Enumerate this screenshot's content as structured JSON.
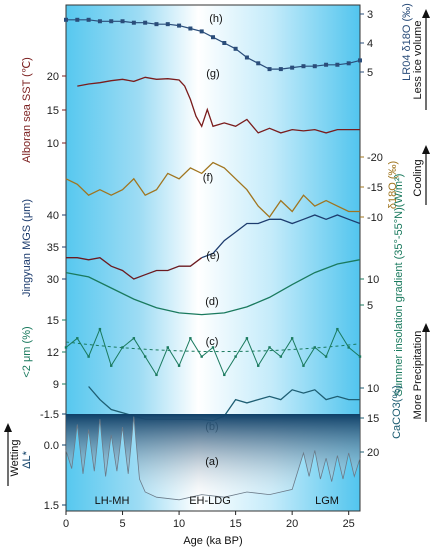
{
  "chart_data": {
    "type": "line",
    "xlabel": "Age (ka BP)",
    "xlim": [
      0,
      26
    ],
    "xticks": [
      "0",
      "5",
      "10",
      "15",
      "20",
      "25"
    ],
    "period_labels": [
      "LH-MH",
      "EH-LDG",
      "LGM"
    ],
    "colors": {
      "h": "#2a4d7a",
      "g": "#7a1c1c",
      "f": "#a0751f",
      "e": "#1d3c6e",
      "e_low": "#6b1a20",
      "d": "#1a7a5e",
      "c": "#1a7a5e",
      "b": "#1e5e73",
      "a": "#0e3f67"
    },
    "series": [
      {
        "id": "h",
        "label": "(h)",
        "ylabel": "LR04 δ18O (‰)",
        "yticks": [
          "3",
          "4",
          "5"
        ],
        "right_axis": true,
        "x": [
          0,
          1,
          2,
          3,
          4,
          5,
          6,
          7,
          8,
          9,
          10,
          11,
          12,
          13,
          14,
          15,
          16,
          17,
          18,
          19,
          20,
          21,
          22,
          23,
          24,
          25,
          26
        ],
        "values": [
          3.2,
          3.2,
          3.2,
          3.25,
          3.25,
          3.25,
          3.3,
          3.3,
          3.35,
          3.35,
          3.4,
          3.5,
          3.6,
          3.8,
          4.0,
          4.2,
          4.5,
          4.7,
          4.9,
          4.9,
          4.85,
          4.8,
          4.8,
          4.75,
          4.75,
          4.7,
          4.6
        ]
      },
      {
        "id": "g",
        "label": "(g)",
        "ylabel": "Alboran sea SST (℃)",
        "yticks": [
          "20",
          "15",
          "10"
        ],
        "x": [
          1,
          2,
          3,
          4,
          5,
          6,
          7,
          8,
          9,
          10,
          10.5,
          11,
          11.5,
          12,
          12.5,
          13,
          14,
          15,
          16,
          17,
          18,
          19,
          20,
          21,
          22,
          23,
          24,
          25,
          26
        ],
        "values": [
          18.5,
          18.8,
          19,
          19.3,
          19.5,
          19.2,
          19.8,
          19.5,
          19.6,
          19.4,
          18.5,
          16.5,
          14,
          12.5,
          15,
          12.5,
          13,
          12.5,
          13.5,
          11.5,
          12.2,
          11.5,
          12,
          11.8,
          12,
          11.5,
          12,
          12,
          12
        ]
      },
      {
        "id": "f",
        "label": "(f)",
        "ylabel": "δ18O (‰)",
        "yticks": [
          "-20",
          "-15",
          "-10"
        ],
        "right_axis": true,
        "x": [
          0,
          1,
          2,
          3,
          4,
          5,
          6,
          7,
          8,
          9,
          10,
          11,
          12,
          13,
          14,
          15,
          16,
          17,
          18,
          19,
          20,
          21,
          22,
          23,
          24,
          25,
          26
        ],
        "values": [
          -14,
          -15,
          -17,
          -16,
          -17,
          -16,
          -14,
          -17,
          -16,
          -13,
          -14,
          -12,
          -13,
          -11,
          -12,
          -14,
          -16,
          -19,
          -21,
          -18,
          -20,
          -17,
          -19,
          -18,
          -19,
          -20,
          -20
        ]
      },
      {
        "id": "e",
        "label": "(e)",
        "ylabel": "Jingyuan MGS (μm)",
        "yticks": [
          "40",
          "35",
          "30"
        ],
        "x": [
          0,
          1,
          2,
          3,
          4,
          5,
          6,
          7,
          8,
          9,
          10,
          11,
          12,
          13,
          14,
          15,
          16,
          17,
          18,
          19,
          20,
          21,
          22,
          23,
          24,
          25,
          26
        ],
        "values": [
          30,
          30,
          29.5,
          30,
          28,
          27,
          25,
          26,
          27,
          27,
          28,
          28,
          30,
          31,
          34,
          36,
          38,
          38,
          39,
          39,
          38,
          39,
          40,
          39,
          40,
          39,
          38
        ]
      },
      {
        "id": "d",
        "label": "(d)",
        "ylabel": "Summer insolation gradient (35°-55°N)(W/m²)",
        "yticks": [
          "10",
          "5"
        ],
        "right_axis": true,
        "x": [
          0,
          2,
          4,
          6,
          8,
          10,
          12,
          14,
          16,
          18,
          20,
          22,
          24,
          26
        ],
        "values": [
          8.3,
          7.8,
          6.5,
          5.2,
          4.2,
          3.6,
          3.4,
          3.6,
          4.3,
          5.4,
          6.9,
          8.3,
          9.3,
          9.8
        ]
      },
      {
        "id": "c",
        "label": "(c)",
        "ylabel": "<2 μm (%)",
        "yticks": [
          "15",
          "12",
          "9"
        ],
        "x": [
          0,
          1,
          2,
          3,
          4,
          5,
          6,
          7,
          8,
          9,
          10,
          11,
          12,
          13,
          14,
          15,
          16,
          17,
          18,
          19,
          20,
          21,
          22,
          23,
          24,
          25,
          26
        ],
        "values": [
          12,
          13,
          11,
          14,
          10,
          12,
          13,
          11,
          9,
          12,
          10,
          13,
          11,
          12,
          9,
          11,
          13,
          10,
          12,
          11,
          13,
          10,
          12,
          11,
          14,
          12,
          11
        ]
      },
      {
        "id": "b",
        "label": "(b)",
        "ylabel": "CaCO3(%)",
        "yticks": [
          "10",
          "15",
          "20"
        ],
        "right_axis": true,
        "x": [
          2,
          3,
          4,
          5,
          7,
          8,
          9,
          10,
          11,
          12,
          13,
          14,
          15,
          16,
          17,
          18,
          19,
          20,
          21,
          22,
          23,
          24,
          25,
          26
        ],
        "values": [
          10,
          12,
          13.5,
          14,
          15,
          15,
          15,
          15,
          15,
          15,
          15.2,
          14.5,
          12,
          12.5,
          12,
          11.5,
          12,
          10.5,
          11,
          10.5,
          12,
          11.5,
          12,
          12
        ]
      },
      {
        "id": "a",
        "label": "(a)",
        "ylabel": "ΔL*",
        "yticks": [
          "-1.5",
          "0.0",
          "1.5"
        ],
        "x": [
          0,
          0.5,
          1,
          1.5,
          2,
          2.5,
          3,
          3.5,
          4,
          4.5,
          5,
          5.5,
          6,
          6.5,
          7,
          8,
          10,
          12,
          14,
          16,
          18,
          20,
          21,
          21.5,
          22,
          22.5,
          23,
          23.5,
          24,
          24.5,
          25,
          25.5,
          26
        ],
        "values": [
          -0.6,
          0.1,
          -1.6,
          0.3,
          -1.4,
          0.2,
          -1.8,
          0.4,
          -1.2,
          0.2,
          -1.5,
          0.3,
          -1.9,
          0.5,
          1,
          1.2,
          1.3,
          1.1,
          1.2,
          1,
          1.1,
          0.9,
          -0.5,
          0.4,
          -0.6,
          0.5,
          -0.3,
          0.6,
          -0.4,
          0.5,
          -0.5,
          0.4,
          -0.3
        ]
      }
    ],
    "right_annotations": [
      {
        "text": "Less ice volume",
        "direction": "up"
      },
      {
        "text": "Cooling",
        "direction": "up"
      },
      {
        "text": "More Precipitation",
        "direction": "up"
      }
    ],
    "left_annotation": {
      "text": "Wetting",
      "direction": "up"
    }
  }
}
